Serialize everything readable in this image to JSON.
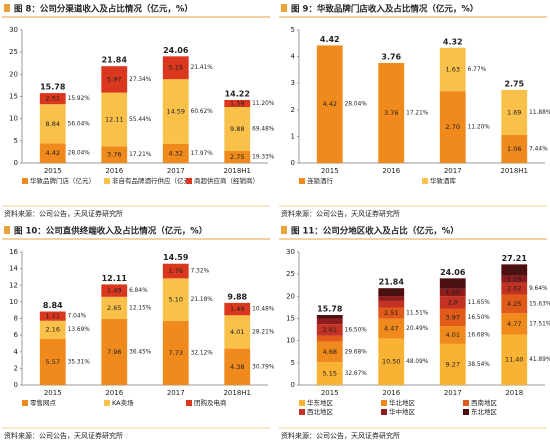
{
  "chart_data": [
    {
      "type": "stacked-bar",
      "title": "图 8：公司分渠道收入及占比情况（亿元，%）",
      "source": "资料来源：公司公告，天风证券研究所",
      "categories": [
        "2015",
        "2016",
        "2017",
        "2018H1"
      ],
      "ylim": [
        0,
        30
      ],
      "yticks": [
        0,
        5,
        10,
        15,
        20,
        25,
        30
      ],
      "totals": [
        15.78,
        21.84,
        24.06,
        14.22
      ],
      "series": [
        {
          "name": "华致品牌门店（亿元）",
          "color": "#f08a1c",
          "values": [
            4.42,
            3.76,
            4.32,
            2.75
          ],
          "shares": [
            28.04,
            17.21,
            17.97,
            19.33
          ],
          "share_labels": [
            "28.04%",
            "17.21%",
            "17.97%",
            "19.33%"
          ]
        },
        {
          "name": "非自有品牌酒行供应（亿元）",
          "color": "#f9c14a",
          "values": [
            8.84,
            12.11,
            14.59,
            9.88
          ],
          "shares": [
            56.04,
            55.44,
            60.62,
            69.48
          ],
          "share_labels": [
            "56.04%",
            "55.44%",
            "60.62%",
            "69.48%"
          ]
        },
        {
          "name": "商超供应商（经销商）",
          "color": "#d9381e",
          "values": [
            2.51,
            5.97,
            5.15,
            1.59
          ],
          "shares": [
            15.92,
            27.34,
            21.41,
            11.2
          ],
          "share_labels": [
            "15.92%",
            "27.34%",
            "21.41%",
            "11.20%"
          ]
        }
      ]
    },
    {
      "type": "stacked-bar",
      "title": "图 9：华致品牌门店收入及占比情况（亿元，%）",
      "source": "资料来源：公司公告，天风证券研究所",
      "categories": [
        "2015",
        "2016",
        "2017",
        "2018H1"
      ],
      "ylim": [
        0,
        5
      ],
      "yticks": [
        0,
        1,
        2,
        3,
        4,
        5
      ],
      "totals": [
        4.42,
        3.76,
        4.32,
        2.75
      ],
      "series": [
        {
          "name": "连锁酒行",
          "color": "#f08a1c",
          "values": [
            4.42,
            3.76,
            2.7,
            1.06
          ],
          "value_labels": [
            "4.42",
            "3.76",
            "2.70",
            "1.06"
          ],
          "shares": [
            28.04,
            17.21,
            11.2,
            7.44
          ],
          "share_labels": [
            "28.04%",
            "17.21%",
            "11.20%",
            "7.44%"
          ]
        },
        {
          "name": "华致酒库",
          "color": "#f9c14a",
          "values": [
            null,
            null,
            1.63,
            1.69
          ],
          "shares": [
            null,
            null,
            6.77,
            11.88
          ],
          "share_labels": [
            null,
            null,
            "6.77%",
            "11.88%"
          ]
        }
      ]
    },
    {
      "type": "stacked-bar",
      "title": "图 10：公司直供终端收入及占比情况（亿元，%）",
      "source": "资料来源：公司公告，天风证券研究所",
      "categories": [
        "2015",
        "2016",
        "2017",
        "2018H1"
      ],
      "ylim": [
        0,
        16
      ],
      "yticks": [
        0,
        2,
        4,
        6,
        8,
        10,
        12,
        14,
        16
      ],
      "totals": [
        8.84,
        12.11,
        14.59,
        9.88
      ],
      "series": [
        {
          "name": "零售网点",
          "color": "#f08a1c",
          "values": [
            5.57,
            7.96,
            7.73,
            4.38
          ],
          "shares": [
            35.31,
            36.45,
            32.12,
            30.79
          ],
          "share_labels": [
            "35.31%",
            "36.45%",
            "32.12%",
            "30.79%"
          ]
        },
        {
          "name": "KA卖场",
          "color": "#f9c14a",
          "values": [
            2.16,
            2.65,
            5.1,
            4.01
          ],
          "value_labels": [
            "2.16",
            "2.65",
            "5.10",
            "4.01"
          ],
          "shares": [
            13.69,
            12.15,
            21.18,
            28.21
          ],
          "share_labels": [
            "13.69%",
            "12.15%",
            "21.18%",
            "28.21%"
          ]
        },
        {
          "name": "团购及电商",
          "color": "#d9381e",
          "values": [
            1.11,
            1.49,
            1.76,
            1.49
          ],
          "shares": [
            7.04,
            6.84,
            7.32,
            10.48
          ],
          "share_labels": [
            "7.04%",
            "6.84%",
            "7.32%",
            "10.48%"
          ]
        }
      ]
    },
    {
      "type": "stacked-bar",
      "title": "图 11：公司分地区收入及占比（亿元，%）",
      "source": "资料来源：公司公告，天风证券研究所",
      "categories": [
        "2015",
        "2016",
        "2017",
        "2018"
      ],
      "ylim": [
        0,
        30
      ],
      "yticks": [
        0,
        5,
        10,
        15,
        20,
        25,
        30
      ],
      "totals": [
        15.78,
        21.84,
        24.06,
        27.21
      ],
      "series": [
        {
          "name": "华东地区",
          "color": "#f9b233",
          "values": [
            5.15,
            10.5,
            9.27,
            11.4
          ],
          "value_labels": [
            "5.15",
            "10.50",
            "9.27",
            "11.40"
          ],
          "shares": [
            32.67,
            48.09,
            38.54,
            41.89
          ],
          "share_labels": [
            "32.67%",
            "48.09%",
            "38.54%",
            "41.89%"
          ]
        },
        {
          "name": "华北地区",
          "color": "#f08a1c",
          "values": [
            4.68,
            4.47,
            4.01,
            4.77
          ],
          "shares": [
            29.68,
            20.49,
            16.68,
            17.51
          ],
          "share_labels": [
            "29.68%",
            "20.49%",
            "16.68%",
            "17.51%"
          ]
        },
        {
          "name": "西南地区",
          "color": "#e05a1a",
          "values": [
            1.27,
            2.51,
            3.97,
            4.25
          ],
          "shares": [
            8.08,
            11.51,
            16.5,
            15.63
          ],
          "share_labels": [
            "8.08%",
            "11.51%",
            "16.50%",
            "15.63%"
          ]
        },
        {
          "name": "西北地区",
          "color": "#c33222",
          "values": [
            2.61,
            1.48,
            2.8,
            2.62
          ],
          "shares": [
            16.5,
            6.79,
            11.65,
            9.64
          ],
          "share_labels": [
            "16.50%",
            "6.79%",
            "11.65%",
            "9.64%"
          ]
        },
        {
          "name": "华中地区",
          "color": "#8e1c1c",
          "values": [
            1.3,
            1.1,
            1.65,
            1.59
          ],
          "value_labels": [
            "1.30",
            "1.10",
            "1.65",
            "1.59"
          ]
        },
        {
          "name": "东北地区",
          "color": "#4f0f0f",
          "values": [
            0.77,
            1.78,
            2.36,
            2.58
          ]
        }
      ]
    }
  ]
}
